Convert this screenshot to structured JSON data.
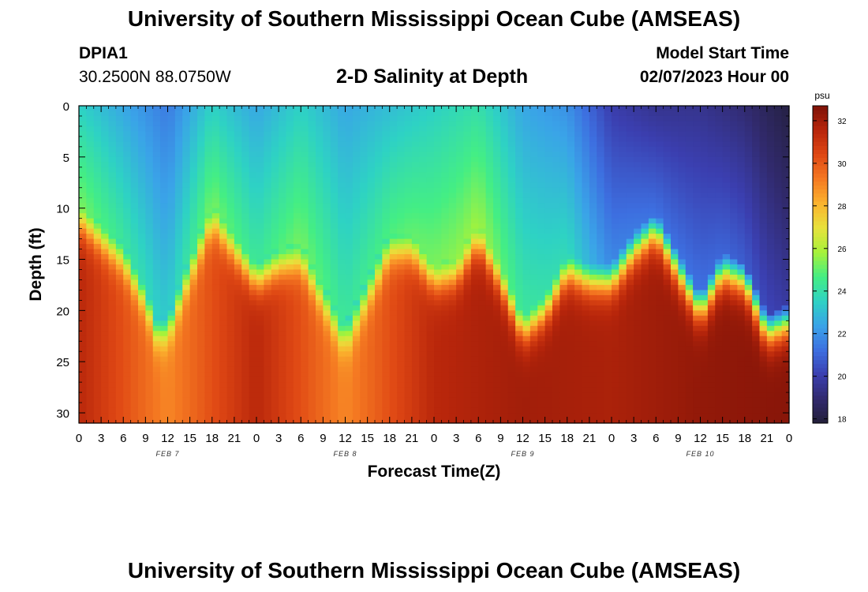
{
  "header": {
    "title": "University of Southern Mississippi Ocean Cube (AMSEAS)",
    "station_id": "DPIA1",
    "station_coords": "30.2500N  88.0750W",
    "subtitle": "2-D Salinity at Depth",
    "model_start_label": "Model Start Time",
    "model_start_value": "02/07/2023 Hour 00"
  },
  "footer": {
    "title": "University of Southern Mississippi Ocean Cube (AMSEAS)"
  },
  "chart_data": {
    "type": "heatmap",
    "title": "2-D Salinity at Depth",
    "xlabel": "Forecast Time(Z)",
    "ylabel": "Depth (ft)",
    "x_units": "hours from model start",
    "xlim": [
      0,
      96
    ],
    "ylim": [
      0,
      31
    ],
    "x_tick_labels": [
      "0",
      "3",
      "6",
      "9",
      "12",
      "15",
      "18",
      "21",
      "0",
      "3",
      "6",
      "9",
      "12",
      "15",
      "18",
      "21",
      "0",
      "3",
      "6",
      "9",
      "12",
      "15",
      "18",
      "21",
      "0",
      "3",
      "6",
      "9",
      "12",
      "15",
      "18",
      "21",
      "0"
    ],
    "y_ticks": [
      0,
      5,
      10,
      15,
      20,
      25,
      30
    ],
    "day_labels": [
      {
        "label": "FEB 7",
        "hour": 12
      },
      {
        "label": "FEB 8",
        "hour": 36
      },
      {
        "label": "FEB 9",
        "hour": 60
      },
      {
        "label": "FEB 10",
        "hour": 84
      }
    ],
    "colorbar": {
      "units": "psu",
      "min": 17.8,
      "max": 32.7,
      "ticks": [
        18,
        20,
        22,
        24,
        26,
        28,
        30,
        32
      ],
      "colors": [
        "#231f3a",
        "#312a6d",
        "#3b3fb0",
        "#3d6fe0",
        "#3aa3e8",
        "#2ed2c4",
        "#44ee84",
        "#a6f23a",
        "#e7e23c",
        "#fbb42e",
        "#f57a22",
        "#df4814",
        "#b8260b",
        "#7e1208"
      ]
    },
    "halocline_depth_ft": [
      {
        "hour": 0,
        "depth": 11
      },
      {
        "hour": 3,
        "depth": 13
      },
      {
        "hour": 6,
        "depth": 15
      },
      {
        "hour": 9,
        "depth": 19
      },
      {
        "hour": 10.5,
        "depth": 22
      },
      {
        "hour": 12,
        "depth": 22
      },
      {
        "hour": 14,
        "depth": 18
      },
      {
        "hour": 18,
        "depth": 11
      },
      {
        "hour": 21,
        "depth": 14
      },
      {
        "hour": 24,
        "depth": 17
      },
      {
        "hour": 27,
        "depth": 15.5
      },
      {
        "hour": 30,
        "depth": 15
      },
      {
        "hour": 33,
        "depth": 19
      },
      {
        "hour": 36,
        "depth": 23
      },
      {
        "hour": 38,
        "depth": 20
      },
      {
        "hour": 42,
        "depth": 14
      },
      {
        "hour": 45,
        "depth": 14
      },
      {
        "hour": 48,
        "depth": 17
      },
      {
        "hour": 51,
        "depth": 16.5
      },
      {
        "hour": 54,
        "depth": 13
      },
      {
        "hour": 57,
        "depth": 17
      },
      {
        "hour": 60,
        "depth": 22
      },
      {
        "hour": 63,
        "depth": 20
      },
      {
        "hour": 66,
        "depth": 16
      },
      {
        "hour": 69,
        "depth": 17
      },
      {
        "hour": 72,
        "depth": 17
      },
      {
        "hour": 75,
        "depth": 14
      },
      {
        "hour": 78,
        "depth": 12
      },
      {
        "hour": 81,
        "depth": 16
      },
      {
        "hour": 84,
        "depth": 20
      },
      {
        "hour": 87,
        "depth": 16
      },
      {
        "hour": 90,
        "depth": 17
      },
      {
        "hour": 93,
        "depth": 22
      },
      {
        "hour": 96,
        "depth": 21
      }
    ],
    "surface_salinity_psu": [
      {
        "hour": 0,
        "psu": 23.5
      },
      {
        "hour": 6,
        "psu": 22.5
      },
      {
        "hour": 12,
        "psu": 21.5
      },
      {
        "hour": 18,
        "psu": 23.5
      },
      {
        "hour": 24,
        "psu": 22.5
      },
      {
        "hour": 30,
        "psu": 23.5
      },
      {
        "hour": 36,
        "psu": 22.5
      },
      {
        "hour": 42,
        "psu": 23
      },
      {
        "hour": 48,
        "psu": 23.5
      },
      {
        "hour": 54,
        "psu": 24
      },
      {
        "hour": 60,
        "psu": 22.5
      },
      {
        "hour": 66,
        "psu": 22
      },
      {
        "hour": 72,
        "psu": 20
      },
      {
        "hour": 78,
        "psu": 19.5
      },
      {
        "hour": 84,
        "psu": 19.5
      },
      {
        "hour": 90,
        "psu": 19
      },
      {
        "hour": 96,
        "psu": 18
      }
    ],
    "bottom_salinity_psu": [
      {
        "hour": 0,
        "psu": 31.5
      },
      {
        "hour": 12,
        "psu": 29
      },
      {
        "hour": 24,
        "psu": 31.5
      },
      {
        "hour": 36,
        "psu": 29
      },
      {
        "hour": 48,
        "psu": 31.5
      },
      {
        "hour": 60,
        "psu": 32
      },
      {
        "hour": 72,
        "psu": 31.8
      },
      {
        "hour": 84,
        "psu": 32.3
      },
      {
        "hour": 96,
        "psu": 32.5
      }
    ]
  }
}
